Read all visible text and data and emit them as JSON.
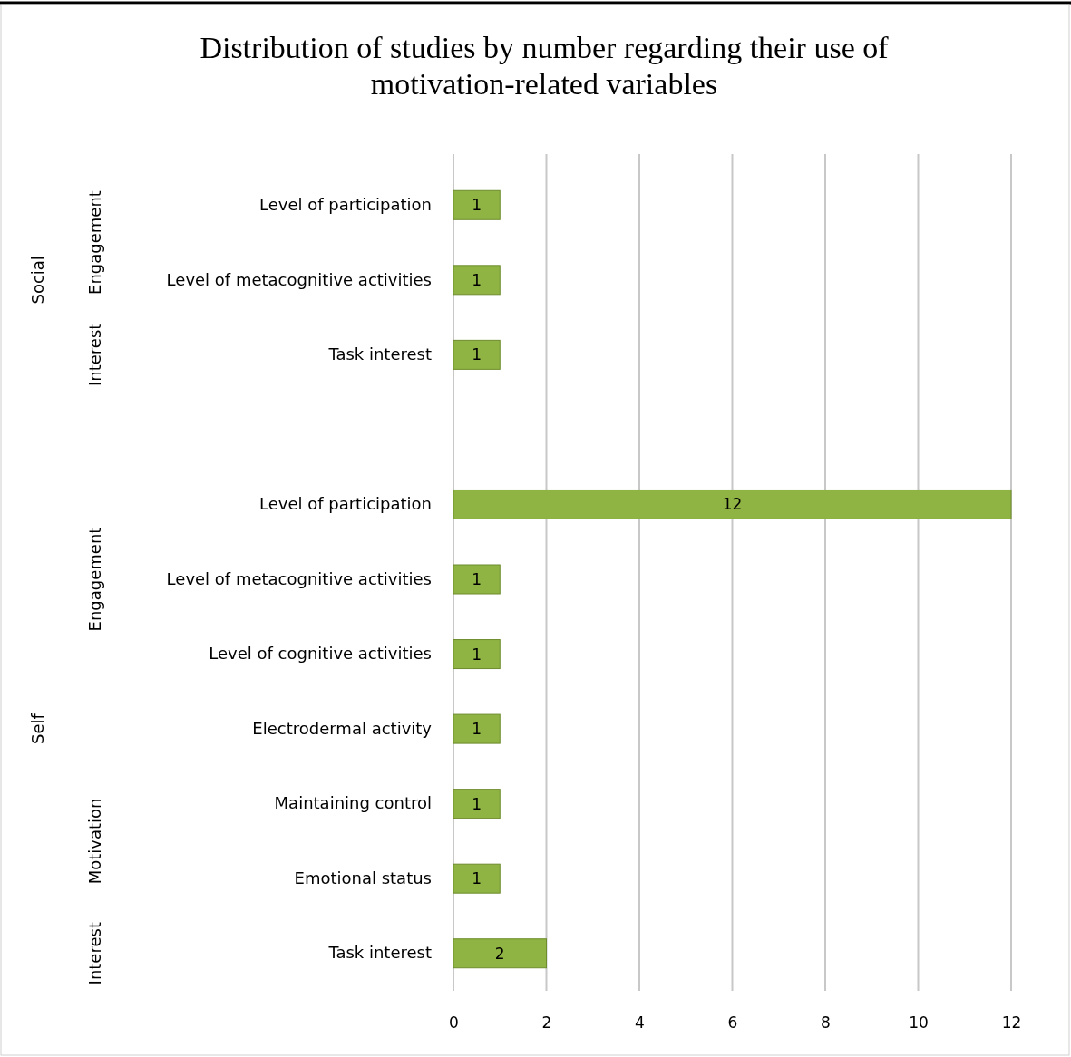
{
  "chart_data": {
    "type": "bar",
    "orientation": "horizontal",
    "title": "Distribution of studies by number regarding their use of motivation-related variables",
    "categories": [
      "Level of participation",
      "Level of metacognitive activities",
      "Task interest",
      null,
      "Level of participation",
      "Level of metacognitive activities",
      "Level of cognitive activities",
      "Electrodermal activity",
      "Maintaining control",
      "Emotional status",
      "Task interest"
    ],
    "values": [
      1,
      1,
      1,
      null,
      12,
      1,
      1,
      1,
      1,
      1,
      2
    ],
    "color": "#8fb443",
    "xlim": [
      0,
      12
    ],
    "xticks": [
      0,
      2,
      4,
      6,
      8,
      10,
      12
    ],
    "grid": "x",
    "data_labels": true,
    "annotations": [
      "Social",
      "Self",
      "Engagement",
      "Interest",
      "Engagement",
      "Motivation",
      "Interest"
    ]
  }
}
